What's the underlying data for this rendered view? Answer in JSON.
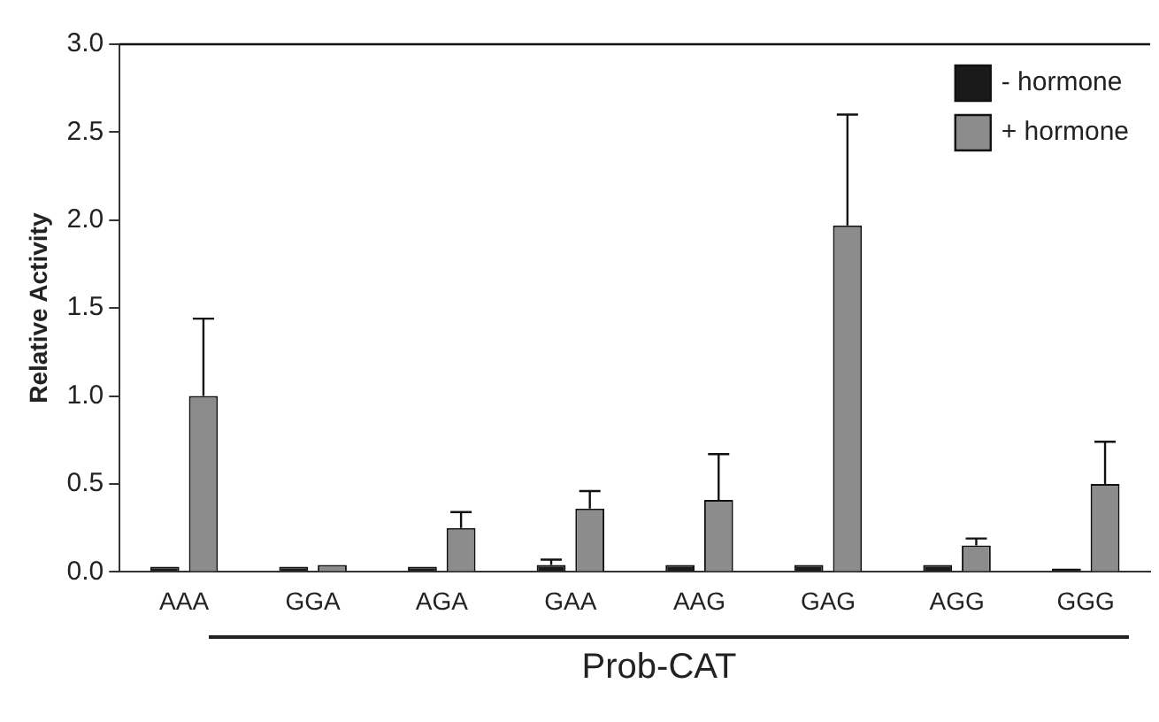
{
  "chart_data": {
    "type": "bar",
    "ylabel": "Relative Activity",
    "xlabel": "Prob-CAT",
    "categories": [
      "AAA",
      "GGA",
      "AGA",
      "GAA",
      "AAG",
      "GAG",
      "AGG",
      "GGG"
    ],
    "series": [
      {
        "name": "- hormone",
        "color": "#1a1a1a",
        "values": [
          0.03,
          0.03,
          0.03,
          0.04,
          0.04,
          0.04,
          0.04,
          0.02
        ],
        "errors": [
          null,
          null,
          null,
          [
            0.04,
            0.07
          ],
          null,
          null,
          null,
          null
        ]
      },
      {
        "name": "+ hormone",
        "color": "#8c8c8c",
        "values": [
          1.0,
          0.04,
          0.25,
          0.36,
          0.41,
          1.97,
          0.15,
          0.5
        ],
        "errors": [
          [
            1.0,
            1.44
          ],
          null,
          [
            0.25,
            0.34
          ],
          [
            0.36,
            0.46
          ],
          [
            0.41,
            0.67
          ],
          [
            1.97,
            2.6
          ],
          [
            0.15,
            0.19
          ],
          [
            0.5,
            0.74
          ]
        ]
      }
    ],
    "ylim": [
      0,
      3.0
    ],
    "yticks": [
      {
        "value": 0,
        "label": "0.0"
      },
      {
        "value": 0.5,
        "label": "0.5"
      },
      {
        "value": 1,
        "label": "1.0"
      },
      {
        "value": 1.5,
        "label": "1.5"
      },
      {
        "value": 2,
        "label": "2.0"
      },
      {
        "value": 2.5,
        "label": "2.5"
      },
      {
        "value": 3,
        "label": "3.0"
      }
    ],
    "grid": false,
    "legend": "top right"
  }
}
